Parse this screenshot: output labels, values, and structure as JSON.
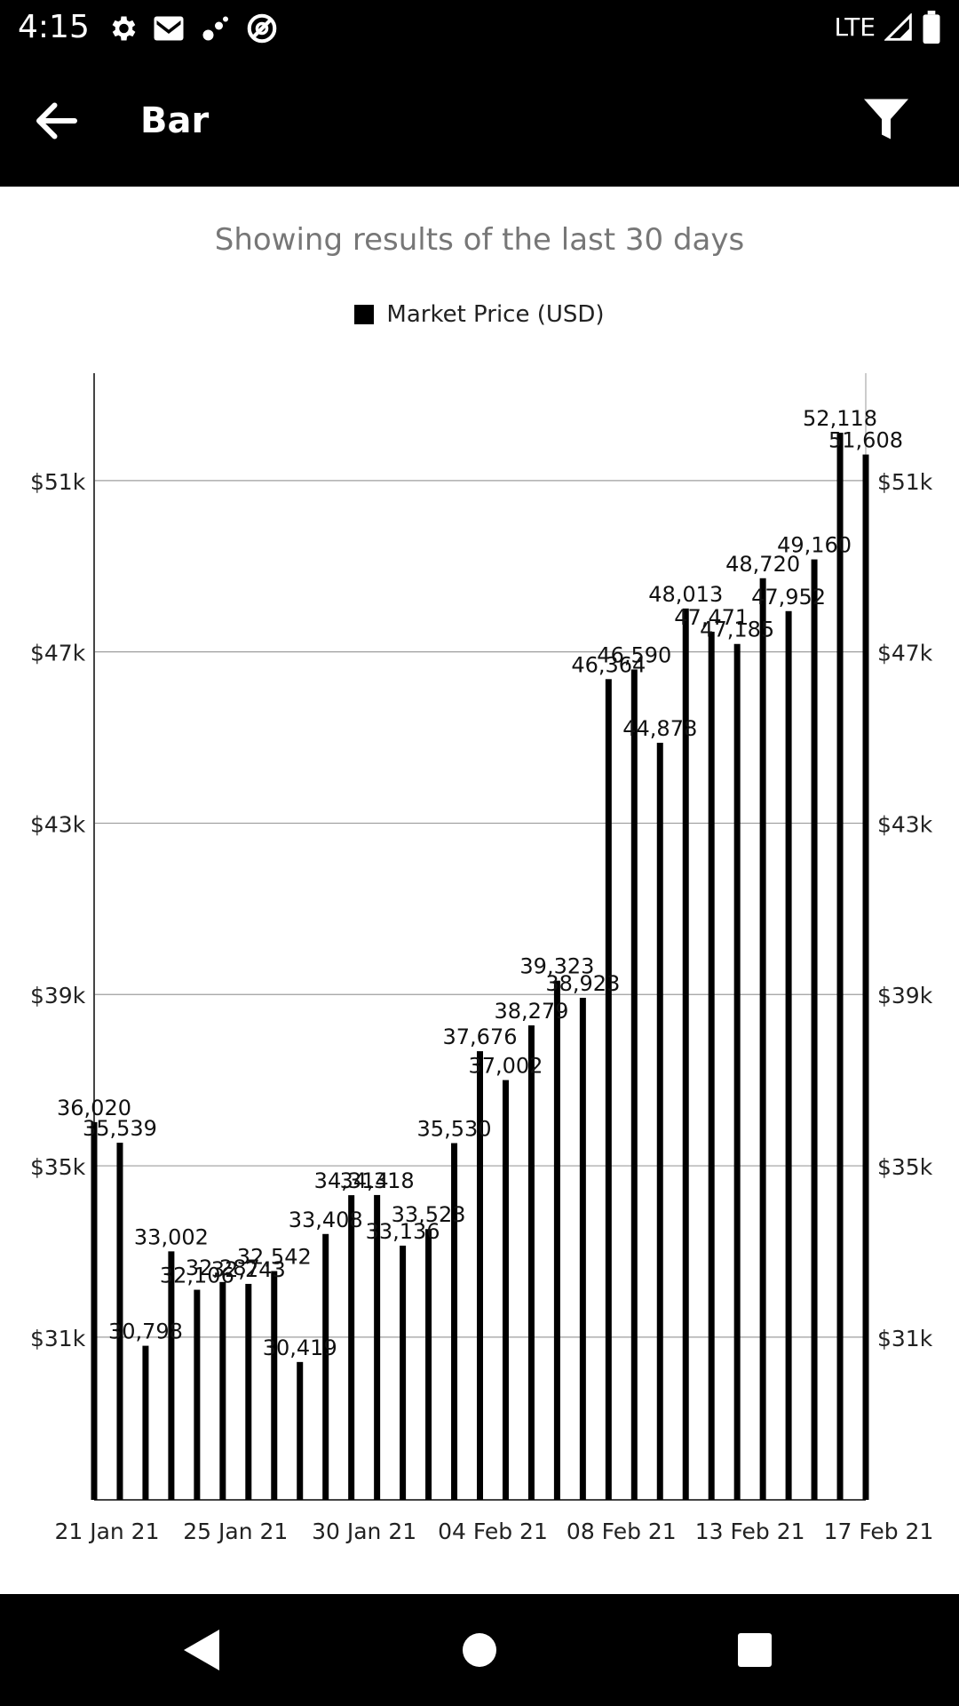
{
  "status_bar": {
    "time": "4:15",
    "network": "LTE",
    "icons": [
      "gear-icon",
      "gmail-icon",
      "signal-off-icon",
      "circle-a-icon",
      "cell-signal-icon",
      "battery-icon"
    ]
  },
  "app_bar": {
    "title": "Bar",
    "icons": [
      "back-arrow-icon",
      "filter-icon"
    ]
  },
  "subtitle": "Showing results of the last 30 days",
  "colors": {
    "bar": "#000000",
    "subtitle": "#777777",
    "grid": "#9e9e9e",
    "bars_bg": "#000000"
  },
  "chart_data": {
    "type": "bar",
    "legend": "Market Price (USD)",
    "legend_position": "top-center",
    "grid": true,
    "y_ticks": [
      {
        "value": 31000,
        "label": "$31k"
      },
      {
        "value": 35000,
        "label": "$35k"
      },
      {
        "value": 39000,
        "label": "$39k"
      },
      {
        "value": 43000,
        "label": "$43k"
      },
      {
        "value": 47000,
        "label": "$47k"
      },
      {
        "value": 51000,
        "label": "$51k"
      }
    ],
    "ylim": [
      27200,
      53300
    ],
    "x_ticks": [
      {
        "index": 1,
        "label": "21 Jan 21"
      },
      {
        "index": 6,
        "label": "25 Jan 21"
      },
      {
        "index": 11,
        "label": "30 Jan 21"
      },
      {
        "index": 16,
        "label": "04 Feb 21"
      },
      {
        "index": 21,
        "label": "08 Feb 21"
      },
      {
        "index": 26,
        "label": "13 Feb 21"
      },
      {
        "index": 31,
        "label": "17 Feb 21"
      }
    ],
    "values": [
      36020,
      35539,
      30798,
      33002,
      32106,
      32287,
      32243,
      32542,
      30419,
      33408,
      34314,
      34318,
      33136,
      33523,
      35530,
      37676,
      37002,
      38279,
      39323,
      38923,
      46364,
      46590,
      44878,
      48013,
      47471,
      47185,
      48720,
      47952,
      49160,
      52118,
      51608
    ],
    "value_labels": [
      "36,020",
      "35,539",
      "30,798",
      "33,002",
      "32,106",
      "32,287",
      "32,243",
      "32,542",
      "30,419",
      "33,408",
      "34,314",
      "34,318",
      "33,136",
      "33,523",
      "35,530",
      "37,676",
      "37,002",
      "38,279",
      "39,323",
      "38,923",
      "46,364",
      "46,590",
      "44,878",
      "48,013",
      "47,471",
      "47,185",
      "48,720",
      "47,952",
      "49,160",
      "52,118",
      "51,608"
    ]
  },
  "nav_bar": {
    "icons": [
      "nav-back-icon",
      "nav-home-icon",
      "nav-recents-icon"
    ]
  }
}
